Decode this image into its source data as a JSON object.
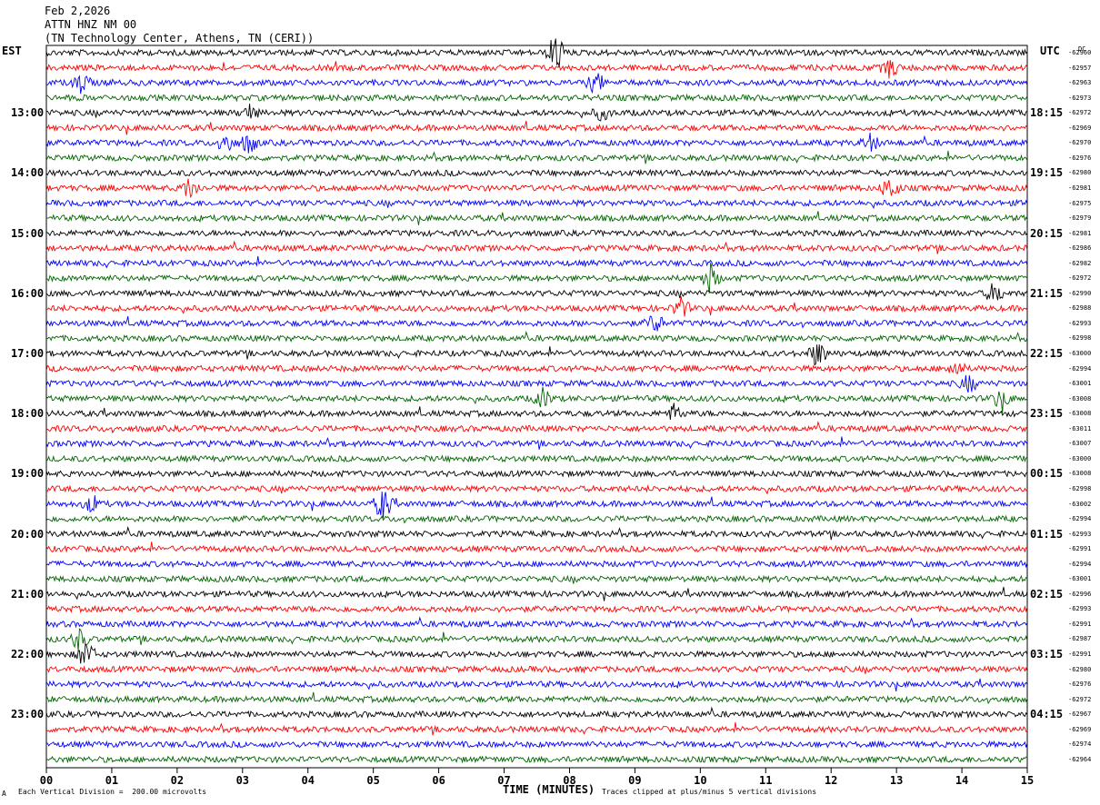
{
  "header": {
    "date": "Feb 2,2026",
    "station": "ATTN HNZ NM 00",
    "location": "(TN Technology Center, Athens, TN (CERI))"
  },
  "axis": {
    "left_zone": "EST",
    "right_zone": "UTC",
    "dc_label": "DC",
    "xlabel": "TIME (MINUTES)",
    "scale_note": "Each Vertical Division =  200.00 microvolts",
    "clip_note": "Traces clipped at plus/minus 5 vertical divisions",
    "corner_mark": "A"
  },
  "chart_data": {
    "type": "line",
    "title": "ATTN HNZ NM 00",
    "xlabel": "TIME (MINUTES)",
    "xlim": [
      0,
      15
    ],
    "x_ticks": [
      "00",
      "01",
      "02",
      "03",
      "04",
      "05",
      "06",
      "07",
      "08",
      "09",
      "10",
      "11",
      "12",
      "13",
      "14",
      "15"
    ],
    "trace_colors": [
      "#000000",
      "#ff0000",
      "#0000ff",
      "#006400"
    ],
    "left_hour_labels": [
      "13:00",
      "14:00",
      "15:00",
      "16:00",
      "17:00",
      "18:00",
      "19:00",
      "20:00",
      "21:00",
      "22:00",
      "23:00"
    ],
    "right_hour_labels": [
      "18:15",
      "19:15",
      "20:15",
      "21:15",
      "22:15",
      "23:15",
      "00:15",
      "01:15",
      "02:15",
      "03:15",
      "04:15"
    ],
    "dc_offsets": [
      "-62960",
      "-62957",
      "-62963",
      "-62973",
      "-62972",
      "-62969",
      "-62970",
      "-62976",
      "-62980",
      "-62981",
      "-62975",
      "-62979",
      "-62981",
      "-62986",
      "-62982",
      "-62972",
      "-62990",
      "-62988",
      "-62993",
      "-62998",
      "-63000",
      "-62994",
      "-63001",
      "-63008",
      "-63008",
      "-63011",
      "-63007",
      "-63000",
      "-63008",
      "-62998",
      "-63002",
      "-62994",
      "-62993",
      "-62991",
      "-62994",
      "-63001",
      "-62996",
      "-62993",
      "-62991",
      "-62987",
      "-62991",
      "-62980",
      "-62976",
      "-62972",
      "-62967",
      "-62969",
      "-62974",
      "-62964"
    ],
    "events": [
      {
        "trace": 0,
        "minute": 7.8,
        "amp": 3.0
      },
      {
        "trace": 1,
        "minute": 12.9,
        "amp": 1.4
      },
      {
        "trace": 2,
        "minute": 0.55,
        "amp": 1.6
      },
      {
        "trace": 2,
        "minute": 8.4,
        "amp": 1.5
      },
      {
        "trace": 4,
        "minute": 3.1,
        "amp": 1.2
      },
      {
        "trace": 4,
        "minute": 8.5,
        "amp": 1.0
      },
      {
        "trace": 6,
        "minute": 2.75,
        "amp": 1.5
      },
      {
        "trace": 6,
        "minute": 3.1,
        "amp": 1.5
      },
      {
        "trace": 6,
        "minute": 12.6,
        "amp": 1.2
      },
      {
        "trace": 9,
        "minute": 2.2,
        "amp": 1.6
      },
      {
        "trace": 9,
        "minute": 12.9,
        "amp": 1.8
      },
      {
        "trace": 15,
        "minute": 10.15,
        "amp": 2.2
      },
      {
        "trace": 16,
        "minute": 14.5,
        "amp": 1.5
      },
      {
        "trace": 17,
        "minute": 9.7,
        "amp": 1.5
      },
      {
        "trace": 18,
        "minute": 9.3,
        "amp": 1.4
      },
      {
        "trace": 20,
        "minute": 11.8,
        "amp": 2.0
      },
      {
        "trace": 21,
        "minute": 13.9,
        "amp": 1.3
      },
      {
        "trace": 22,
        "minute": 14.1,
        "amp": 1.2
      },
      {
        "trace": 23,
        "minute": 7.6,
        "amp": 1.5
      },
      {
        "trace": 23,
        "minute": 14.6,
        "amp": 1.4
      },
      {
        "trace": 24,
        "minute": 9.6,
        "amp": 1.3
      },
      {
        "trace": 30,
        "minute": 0.7,
        "amp": 1.2
      },
      {
        "trace": 30,
        "minute": 5.15,
        "amp": 2.4
      },
      {
        "trace": 39,
        "minute": 0.5,
        "amp": 1.6
      },
      {
        "trace": 40,
        "minute": 0.6,
        "amp": 2.0
      }
    ]
  }
}
